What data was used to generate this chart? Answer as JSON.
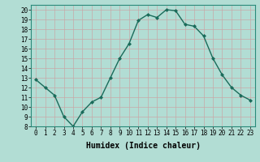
{
  "x": [
    0,
    1,
    2,
    3,
    4,
    5,
    6,
    7,
    8,
    9,
    10,
    11,
    12,
    13,
    14,
    15,
    16,
    17,
    18,
    19,
    20,
    21,
    22,
    23
  ],
  "y": [
    12.8,
    12.0,
    11.2,
    9.0,
    8.0,
    9.5,
    10.5,
    11.0,
    13.0,
    15.0,
    16.5,
    18.9,
    19.5,
    19.2,
    20.0,
    19.9,
    18.5,
    18.3,
    17.3,
    15.0,
    13.3,
    12.0,
    11.2,
    10.7
  ],
  "line_color": "#1a6b5a",
  "marker": "D",
  "marker_size": 2.0,
  "line_width": 1.0,
  "bg_color": "#b2ddd4",
  "grid_color": "#c8a8a8",
  "xlabel": "Humidex (Indice chaleur)",
  "xlim": [
    -0.5,
    23.5
  ],
  "ylim": [
    8,
    20.5
  ],
  "yticks": [
    8,
    9,
    10,
    11,
    12,
    13,
    14,
    15,
    16,
    17,
    18,
    19,
    20
  ],
  "xticks": [
    0,
    1,
    2,
    3,
    4,
    5,
    6,
    7,
    8,
    9,
    10,
    11,
    12,
    13,
    14,
    15,
    16,
    17,
    18,
    19,
    20,
    21,
    22,
    23
  ],
  "tick_label_size": 5.5,
  "xlabel_size": 7.0,
  "xlabel_weight": "bold"
}
